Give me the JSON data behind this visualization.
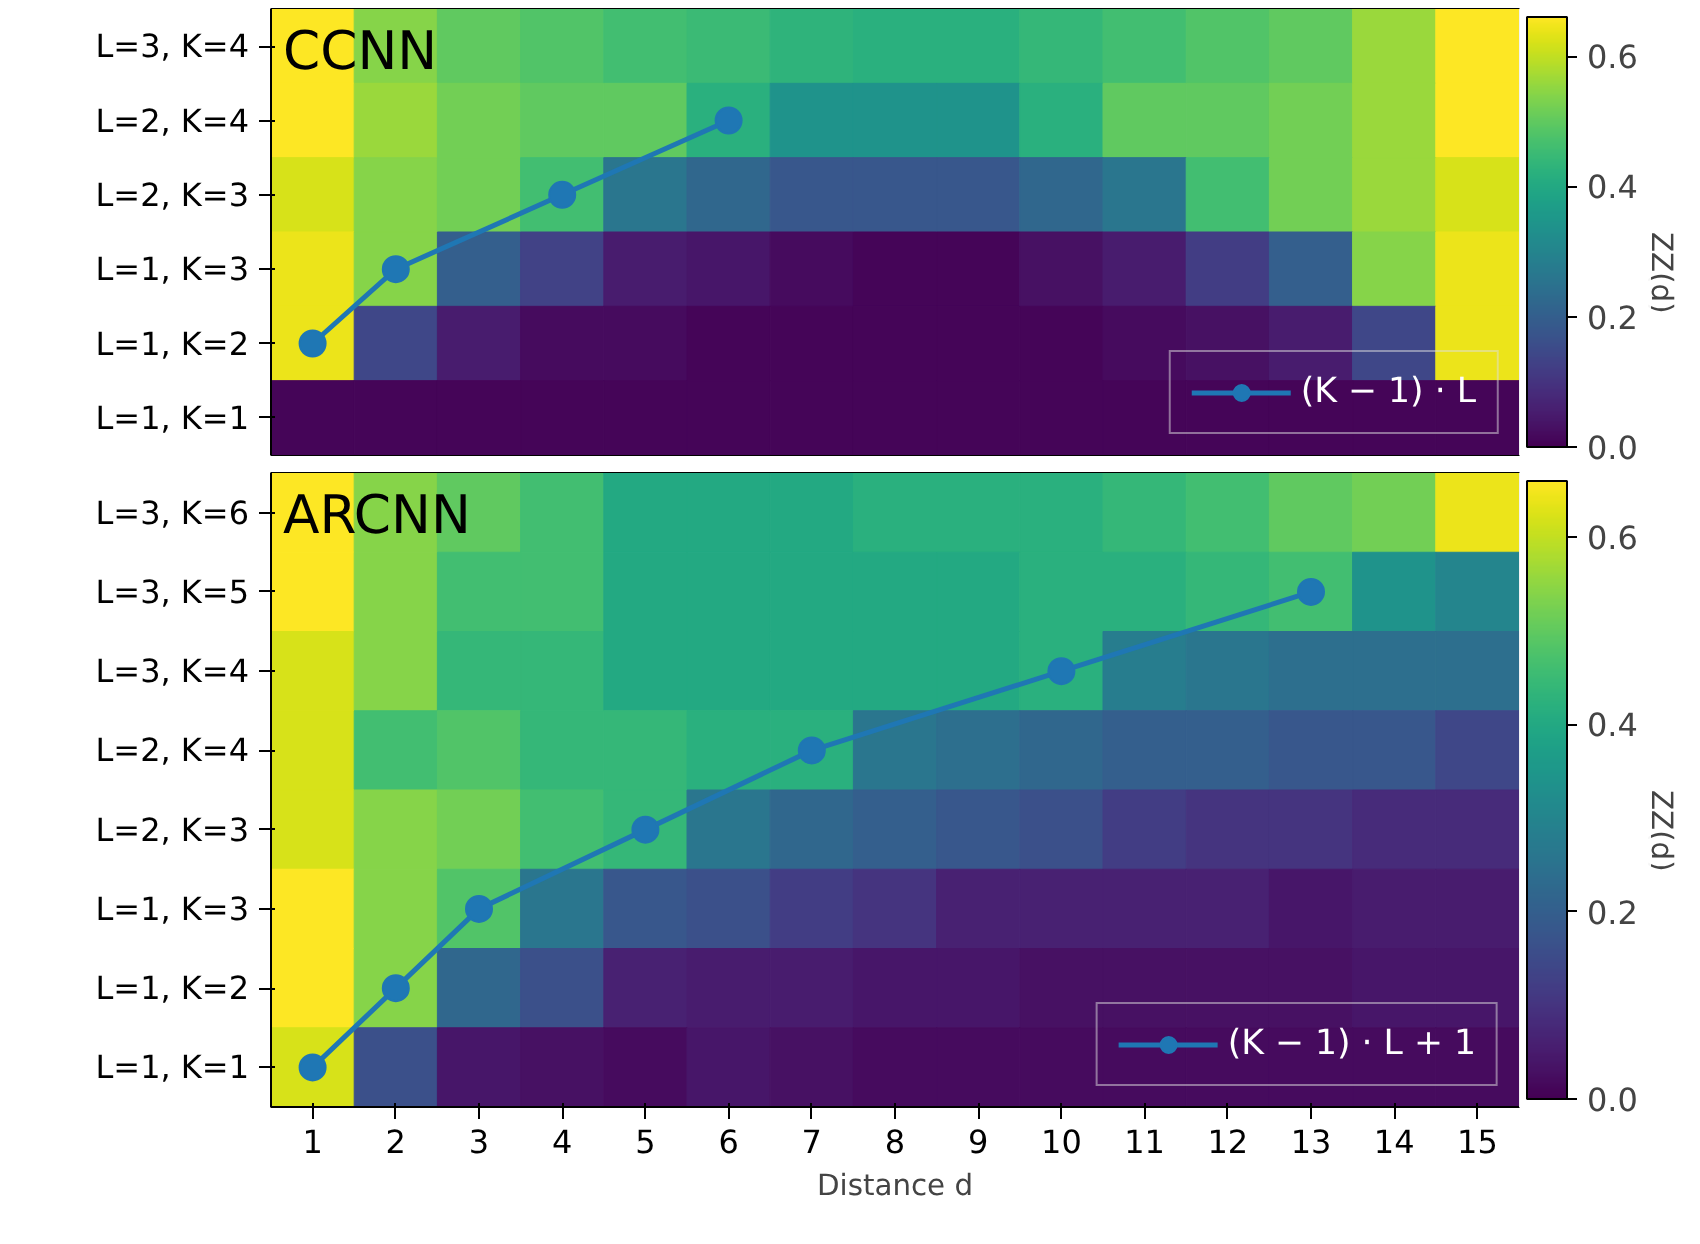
{
  "chart_data": [
    {
      "type": "heatmap",
      "title": "CCNN",
      "orientation": "horizontal",
      "xlim": [
        0.5,
        15.5
      ],
      "xticks": [
        1,
        2,
        3,
        4,
        5,
        6,
        7,
        8,
        9,
        10,
        11,
        12,
        13,
        14,
        15
      ],
      "y_categories": [
        "L=3, K=4",
        "L=2, K=4",
        "L=2, K=3",
        "L=1, K=3",
        "L=1, K=2",
        "L=1, K=1"
      ],
      "cells": [
        [
          0.66,
          0.54,
          0.5,
          0.48,
          0.46,
          0.45,
          0.43,
          0.42,
          0.42,
          0.44,
          0.46,
          0.48,
          0.5,
          0.56,
          0.66
        ],
        [
          0.66,
          0.56,
          0.52,
          0.5,
          0.5,
          0.42,
          0.34,
          0.34,
          0.34,
          0.42,
          0.5,
          0.5,
          0.52,
          0.56,
          0.66
        ],
        [
          0.62,
          0.54,
          0.52,
          0.46,
          0.26,
          0.22,
          0.18,
          0.18,
          0.18,
          0.22,
          0.26,
          0.46,
          0.52,
          0.56,
          0.62
        ],
        [
          0.64,
          0.54,
          0.2,
          0.13,
          0.05,
          0.04,
          0.02,
          0.01,
          0.01,
          0.03,
          0.05,
          0.12,
          0.2,
          0.54,
          0.64
        ],
        [
          0.64,
          0.14,
          0.05,
          0.02,
          0.02,
          0.01,
          0.01,
          0.01,
          0.01,
          0.01,
          0.02,
          0.03,
          0.05,
          0.14,
          0.64
        ],
        [
          0.01,
          0.01,
          0.01,
          0.01,
          0.01,
          0.01,
          0.01,
          0.01,
          0.01,
          0.01,
          0.01,
          0.01,
          0.01,
          0.01,
          0.01
        ]
      ],
      "clim": [
        0,
        0.66
      ],
      "cticks": [
        {
          "value": 0,
          "label": "0.0"
        },
        0.2,
        0.4,
        0.6
      ],
      "clabel": "ZZ(d)",
      "series": [
        {
          "type": "line",
          "name": "(K − 1) · L",
          "color": "#1f77b4",
          "x": [
            "L=1, K=2",
            "L=1, K=3",
            "L=2, K=3",
            "L=2, K=4"
          ],
          "values": [
            1,
            2,
            4,
            6
          ]
        }
      ],
      "marker": "circle",
      "legend": "bottom right",
      "tick_labels": "y"
    },
    {
      "type": "heatmap",
      "title": "ARCNN",
      "xlabel": "Distance d",
      "orientation": "horizontal",
      "xlim": [
        0.5,
        15.5
      ],
      "xticks": [
        1,
        2,
        3,
        4,
        5,
        6,
        7,
        8,
        9,
        10,
        11,
        12,
        13,
        14,
        15
      ],
      "y_categories": [
        "L=3, K=6",
        "L=3, K=5",
        "L=3, K=4",
        "L=2, K=4",
        "L=2, K=3",
        "L=1, K=3",
        "L=1, K=2",
        "L=1, K=1"
      ],
      "cells": [
        [
          0.66,
          0.54,
          0.5,
          0.46,
          0.4,
          0.4,
          0.4,
          0.42,
          0.42,
          0.42,
          0.44,
          0.46,
          0.5,
          0.52,
          0.64
        ],
        [
          0.66,
          0.54,
          0.46,
          0.46,
          0.4,
          0.4,
          0.4,
          0.4,
          0.4,
          0.42,
          0.42,
          0.44,
          0.46,
          0.34,
          0.3
        ],
        [
          0.62,
          0.54,
          0.44,
          0.44,
          0.4,
          0.4,
          0.4,
          0.4,
          0.4,
          0.42,
          0.28,
          0.26,
          0.24,
          0.24,
          0.24
        ],
        [
          0.62,
          0.46,
          0.48,
          0.44,
          0.44,
          0.42,
          0.42,
          0.26,
          0.24,
          0.22,
          0.2,
          0.2,
          0.18,
          0.18,
          0.14
        ],
        [
          0.62,
          0.54,
          0.52,
          0.46,
          0.44,
          0.26,
          0.22,
          0.2,
          0.18,
          0.16,
          0.12,
          0.1,
          0.1,
          0.08,
          0.08
        ],
        [
          0.66,
          0.54,
          0.48,
          0.26,
          0.18,
          0.16,
          0.12,
          0.1,
          0.06,
          0.06,
          0.06,
          0.06,
          0.04,
          0.05,
          0.05
        ],
        [
          0.66,
          0.54,
          0.22,
          0.16,
          0.06,
          0.05,
          0.05,
          0.04,
          0.04,
          0.03,
          0.03,
          0.03,
          0.03,
          0.04,
          0.04
        ],
        [
          0.62,
          0.16,
          0.04,
          0.03,
          0.02,
          0.04,
          0.03,
          0.02,
          0.02,
          0.02,
          0.02,
          0.02,
          0.02,
          0.02,
          0.02
        ]
      ],
      "clim": [
        0,
        0.66
      ],
      "cticks": [
        {
          "value": 0,
          "label": "0.0"
        },
        0.2,
        0.4,
        0.6
      ],
      "clabel": "ZZ(d)",
      "series": [
        {
          "type": "line",
          "name": "(K − 1) · L + 1",
          "color": "#1f77b4",
          "x": [
            "L=1, K=1",
            "L=1, K=2",
            "L=1, K=3",
            "L=2, K=3",
            "L=2, K=4",
            "L=3, K=4",
            "L=3, K=5"
          ],
          "values": [
            1,
            2,
            3,
            5,
            7,
            10,
            13
          ]
        }
      ],
      "marker": "circle",
      "legend": "bottom right"
    }
  ]
}
